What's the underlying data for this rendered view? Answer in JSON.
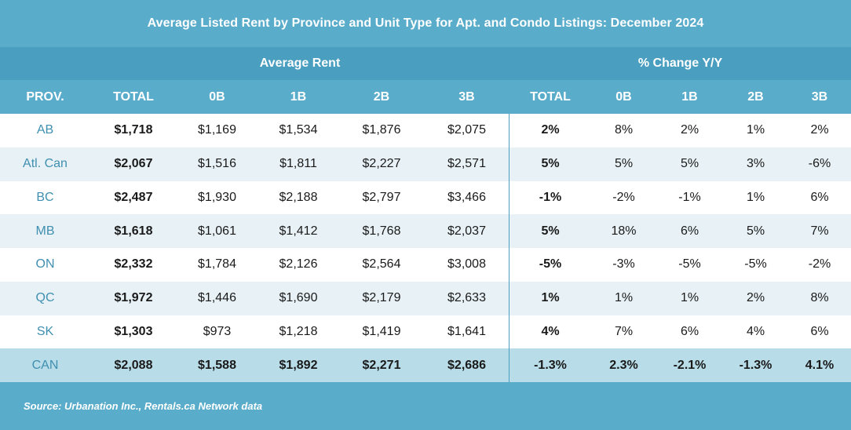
{
  "title": "Average Listed Rent by Province and Unit Type for Apt. and Condo Listings: December 2024",
  "groups": {
    "avg_rent": "Average Rent",
    "pct_change": "% Change Y/Y"
  },
  "headers": [
    "PROV.",
    "TOTAL",
    "0B",
    "1B",
    "2B",
    "3B",
    "TOTAL",
    "0B",
    "1B",
    "2B",
    "3B"
  ],
  "rows": [
    [
      "AB",
      "$1,718",
      "$1,169",
      "$1,534",
      "$1,876",
      "$2,075",
      "2%",
      "8%",
      "2%",
      "1%",
      "2%"
    ],
    [
      "Atl. Can",
      "$2,067",
      "$1,516",
      "$1,811",
      "$2,227",
      "$2,571",
      "5%",
      "5%",
      "5%",
      "3%",
      "-6%"
    ],
    [
      "BC",
      "$2,487",
      "$1,930",
      "$2,188",
      "$2,797",
      "$3,466",
      "-1%",
      "-2%",
      "-1%",
      "1%",
      "6%"
    ],
    [
      "MB",
      "$1,618",
      "$1,061",
      "$1,412",
      "$1,768",
      "$2,037",
      "5%",
      "18%",
      "6%",
      "5%",
      "7%"
    ],
    [
      "ON",
      "$2,332",
      "$1,784",
      "$2,126",
      "$2,564",
      "$3,008",
      "-5%",
      "-3%",
      "-5%",
      "-5%",
      "-2%"
    ],
    [
      "QC",
      "$1,972",
      "$1,446",
      "$1,690",
      "$2,179",
      "$2,633",
      "1%",
      "1%",
      "1%",
      "2%",
      "8%"
    ],
    [
      "SK",
      "$1,303",
      "$973",
      "$1,218",
      "$1,419",
      "$1,641",
      "4%",
      "7%",
      "6%",
      "4%",
      "6%"
    ],
    [
      "CAN",
      "$2,088",
      "$1,588",
      "$1,892",
      "$2,271",
      "$2,686",
      "-1.3%",
      "2.3%",
      "-2.1%",
      "-1.3%",
      "4.1%"
    ]
  ],
  "source": "Source: Urbanation Inc., Rentals.ca Network data",
  "colors": {
    "header_bg": "#5aaccb",
    "group_bg": "#4a9ec0",
    "alt_row": "#e8f2f6",
    "total_row": "#b8dde8",
    "province_text": "#3f8fb0"
  }
}
